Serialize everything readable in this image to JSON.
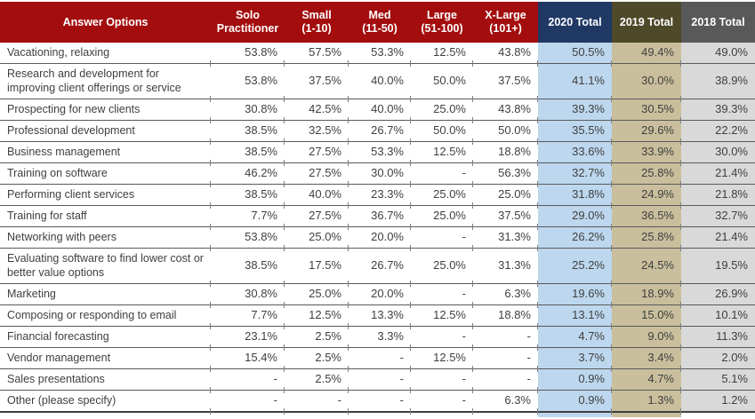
{
  "colors": {
    "header_red": "#A30D0E",
    "header_navy": "#1F3864",
    "header_olive": "#4E4929",
    "header_gray": "#595959",
    "col_2020": "#BDD7EE",
    "col_2019": "#C9BF9D",
    "col_2018": "#D9D9D9"
  },
  "chart_data": {
    "type": "table",
    "columns": [
      {
        "label": "Answer Options",
        "theme": "red"
      },
      {
        "label": "Solo\nPractitioner",
        "theme": "red"
      },
      {
        "label": "Small\n(1-10)",
        "theme": "red"
      },
      {
        "label": "Med\n(11-50)",
        "theme": "red"
      },
      {
        "label": "Large\n(51-100)",
        "theme": "red"
      },
      {
        "label": "X-Large\n(101+)",
        "theme": "red"
      },
      {
        "label": "2020 Total",
        "theme": "navy"
      },
      {
        "label": "2019 Total",
        "theme": "olive"
      },
      {
        "label": "2018 Total",
        "theme": "gray"
      }
    ],
    "rows": [
      {
        "label": "Vacationing, relaxing",
        "values": [
          "53.8%",
          "57.5%",
          "53.3%",
          "12.5%",
          "43.8%",
          "50.5%",
          "49.4%",
          "49.0%"
        ]
      },
      {
        "label": "Research and development for improving client offerings or service",
        "values": [
          "53.8%",
          "37.5%",
          "40.0%",
          "50.0%",
          "37.5%",
          "41.1%",
          "30.0%",
          "38.9%"
        ]
      },
      {
        "label": "Prospecting for new clients",
        "values": [
          "30.8%",
          "42.5%",
          "40.0%",
          "25.0%",
          "43.8%",
          "39.3%",
          "30.5%",
          "39.3%"
        ]
      },
      {
        "label": "Professional development",
        "values": [
          "38.5%",
          "32.5%",
          "26.7%",
          "50.0%",
          "50.0%",
          "35.5%",
          "29.6%",
          "22.2%"
        ]
      },
      {
        "label": "Business management",
        "values": [
          "38.5%",
          "27.5%",
          "53.3%",
          "12.5%",
          "18.8%",
          "33.6%",
          "33.9%",
          "30.0%"
        ]
      },
      {
        "label": "Training on software",
        "values": [
          "46.2%",
          "27.5%",
          "30.0%",
          "-",
          "56.3%",
          "32.7%",
          "25.8%",
          "21.4%"
        ]
      },
      {
        "label": "Performing client services",
        "values": [
          "38.5%",
          "40.0%",
          "23.3%",
          "25.0%",
          "25.0%",
          "31.8%",
          "24.9%",
          "21.8%"
        ]
      },
      {
        "label": "Training for staff",
        "values": [
          "7.7%",
          "27.5%",
          "36.7%",
          "25.0%",
          "37.5%",
          "29.0%",
          "36.5%",
          "32.7%"
        ]
      },
      {
        "label": "Networking with peers",
        "values": [
          "53.8%",
          "25.0%",
          "20.0%",
          "-",
          "31.3%",
          "26.2%",
          "25.8%",
          "21.4%"
        ]
      },
      {
        "label": "Evaluating software to find lower cost or better value options",
        "values": [
          "38.5%",
          "17.5%",
          "26.7%",
          "25.0%",
          "31.3%",
          "25.2%",
          "24.5%",
          "19.5%"
        ]
      },
      {
        "label": "Marketing",
        "values": [
          "30.8%",
          "25.0%",
          "20.0%",
          "-",
          "6.3%",
          "19.6%",
          "18.9%",
          "26.9%"
        ]
      },
      {
        "label": "Composing or responding to email",
        "values": [
          "7.7%",
          "12.5%",
          "13.3%",
          "12.5%",
          "18.8%",
          "13.1%",
          "15.0%",
          "10.1%"
        ]
      },
      {
        "label": "Financial forecasting",
        "values": [
          "23.1%",
          "2.5%",
          "3.3%",
          "-",
          "-",
          "4.7%",
          "9.0%",
          "11.3%"
        ]
      },
      {
        "label": "Vendor management",
        "values": [
          "15.4%",
          "2.5%",
          "-",
          "12.5%",
          "-",
          "3.7%",
          "3.4%",
          "2.0%"
        ]
      },
      {
        "label": "Sales presentations",
        "values": [
          "-",
          "2.5%",
          "-",
          "-",
          "-",
          "0.9%",
          "4.7%",
          "5.1%"
        ]
      },
      {
        "label": "Other (please specify)",
        "values": [
          "-",
          "-",
          "-",
          "-",
          "6.3%",
          "0.9%",
          "1.3%",
          "1.2%"
        ]
      }
    ]
  }
}
